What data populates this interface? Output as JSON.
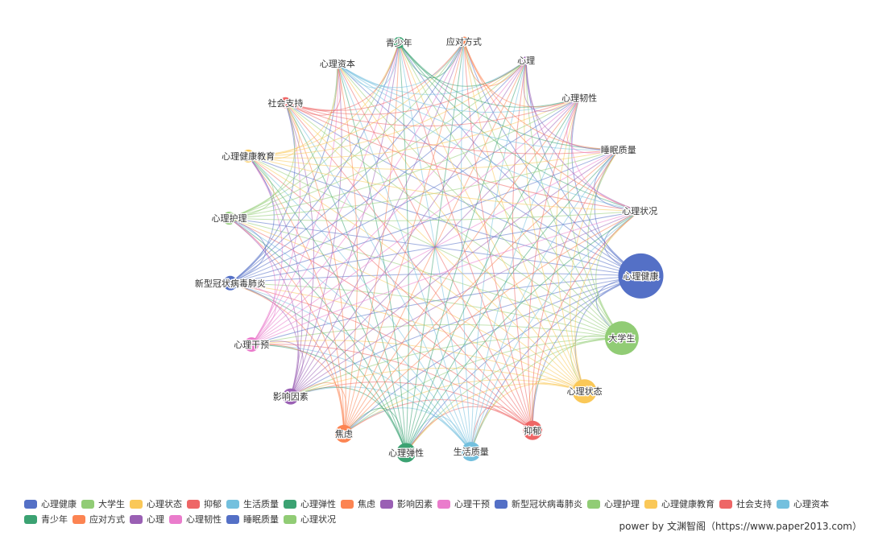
{
  "graph": {
    "nodes": [
      {
        "name": "心理健康",
        "color": "#5470c6",
        "weight": 28
      },
      {
        "name": "大学生",
        "color": "#91cc75",
        "weight": 21
      },
      {
        "name": "心理状态",
        "color": "#fac858",
        "weight": 15
      },
      {
        "name": "抑郁",
        "color": "#ee6666",
        "weight": 12
      },
      {
        "name": "生活质量",
        "color": "#73c0de",
        "weight": 12
      },
      {
        "name": "心理弹性",
        "color": "#3ba272",
        "weight": 12
      },
      {
        "name": "焦虑",
        "color": "#fc8452",
        "weight": 11
      },
      {
        "name": "影响因素",
        "color": "#9a60b4",
        "weight": 10
      },
      {
        "name": "心理干预",
        "color": "#ea7ccc",
        "weight": 9
      },
      {
        "name": "新型冠状病毒肺炎",
        "color": "#5470c6",
        "weight": 9
      },
      {
        "name": "心理护理",
        "color": "#91cc75",
        "weight": 8
      },
      {
        "name": "心理健康教育",
        "color": "#fac858",
        "weight": 8
      },
      {
        "name": "社会支持",
        "color": "#ee6666",
        "weight": 7
      },
      {
        "name": "心理资本",
        "color": "#73c0de",
        "weight": 6
      },
      {
        "name": "青少年",
        "color": "#3ba272",
        "weight": 7
      },
      {
        "name": "应对方式",
        "color": "#fc8452",
        "weight": 6
      },
      {
        "name": "心理",
        "color": "#9a60b4",
        "weight": 5
      },
      {
        "name": "心理韧性",
        "color": "#ea7ccc",
        "weight": 5
      },
      {
        "name": "睡眠质量",
        "color": "#5470c6",
        "weight": 5
      },
      {
        "name": "心理状况",
        "color": "#91cc75",
        "weight": 5
      }
    ],
    "links": "all-pairs"
  },
  "legend": [
    {
      "label": "心理健康",
      "color": "#5470c6"
    },
    {
      "label": "大学生",
      "color": "#91cc75"
    },
    {
      "label": "心理状态",
      "color": "#fac858"
    },
    {
      "label": "抑郁",
      "color": "#ee6666"
    },
    {
      "label": "生活质量",
      "color": "#73c0de"
    },
    {
      "label": "心理弹性",
      "color": "#3ba272"
    },
    {
      "label": "焦虑",
      "color": "#fc8452"
    },
    {
      "label": "影响因素",
      "color": "#9a60b4"
    },
    {
      "label": "心理干预",
      "color": "#ea7ccc"
    },
    {
      "label": "新型冠状病毒肺炎",
      "color": "#5470c6"
    },
    {
      "label": "心理护理",
      "color": "#91cc75"
    },
    {
      "label": "心理健康教育",
      "color": "#fac858"
    },
    {
      "label": "社会支持",
      "color": "#ee6666"
    },
    {
      "label": "心理资本",
      "color": "#73c0de"
    },
    {
      "label": "青少年",
      "color": "#3ba272"
    },
    {
      "label": "应对方式",
      "color": "#fc8452"
    },
    {
      "label": "心理",
      "color": "#9a60b4"
    },
    {
      "label": "心理韧性",
      "color": "#ea7ccc"
    },
    {
      "label": "睡眠质量",
      "color": "#5470c6"
    },
    {
      "label": "心理状况",
      "color": "#91cc75"
    }
  ],
  "footer": "power by 文渊智阁（https://www.paper2013.com）"
}
